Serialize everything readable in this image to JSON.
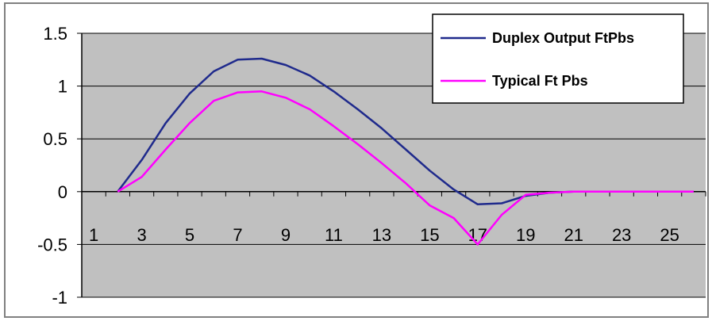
{
  "chart_data": {
    "type": "line",
    "x": [
      1,
      2,
      3,
      4,
      5,
      6,
      7,
      8,
      9,
      10,
      11,
      12,
      13,
      14,
      15,
      16,
      17,
      18,
      19,
      20,
      21,
      22,
      23,
      24,
      25,
      26
    ],
    "x_tick_labels": [
      "1",
      "3",
      "5",
      "7",
      "9",
      "11",
      "13",
      "15",
      "17",
      "19",
      "21",
      "23",
      "25"
    ],
    "y_tick_labels": [
      "1.5",
      "1",
      "0.5",
      "0",
      "-0.5",
      "-1"
    ],
    "ylim": [
      -1,
      1.5
    ],
    "xlim": [
      0.5,
      26.5
    ],
    "grid": "horizontal",
    "legend_position": "top-right",
    "plot_background": "#c0c0c0",
    "series": [
      {
        "name": "Duplex Output FtPbs",
        "color": "#1f2a8c",
        "values": [
          null,
          0,
          0.3,
          0.65,
          0.93,
          1.14,
          1.25,
          1.26,
          1.2,
          1.1,
          0.95,
          0.78,
          0.6,
          0.4,
          0.2,
          0.02,
          -0.12,
          -0.11,
          -0.04,
          -0.01,
          0,
          0,
          0,
          0,
          0,
          0
        ]
      },
      {
        "name": "Typical Ft Pbs",
        "color": "#ff00ff",
        "values": [
          null,
          0,
          0.14,
          0.4,
          0.65,
          0.86,
          0.94,
          0.95,
          0.89,
          0.78,
          0.62,
          0.45,
          0.27,
          0.08,
          -0.13,
          -0.25,
          -0.5,
          -0.22,
          -0.03,
          -0.01,
          0,
          0,
          0,
          0,
          0,
          0
        ]
      }
    ]
  }
}
